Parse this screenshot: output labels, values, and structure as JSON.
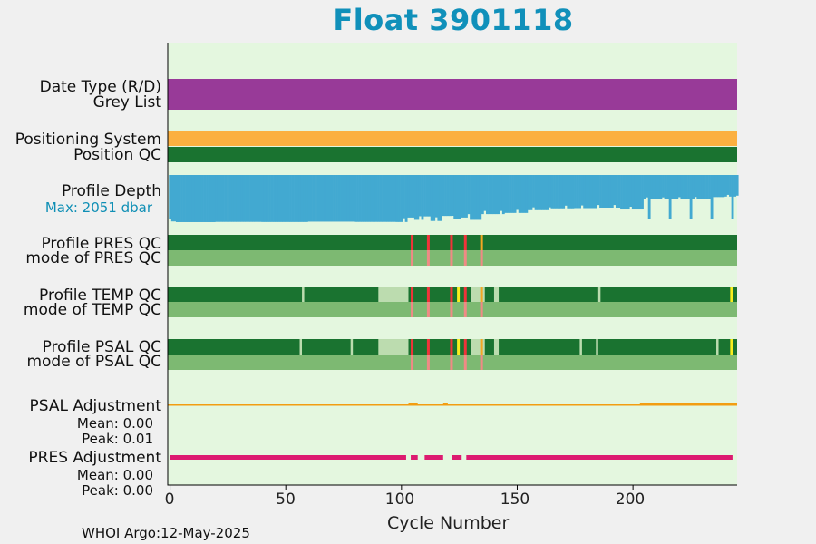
{
  "title": "Float 3901118",
  "footer": "WHOI Argo:12-May-2025",
  "colors": {
    "title": "#1090ba",
    "background": "#e4f7df",
    "purple": "#983a98",
    "orange": "#fbb040",
    "dark_green": "#1a7330",
    "light_green": "#7db972",
    "pale_green": "#bcdcaf",
    "red": "#f0333a",
    "salmon": "#f08a85",
    "yellow": "#f9ee1e",
    "orange_qc": "#f5a623",
    "blue": "#42a9d1",
    "magenta": "#dc1b70",
    "salinity_adj": "#f29d12"
  },
  "labels": {
    "date_type": "Date Type (R/D)",
    "grey_list": "Grey List",
    "positioning_system": "Positioning System",
    "position_qc": "Position QC",
    "profile_depth": "Profile Depth",
    "max_depth": "Max: 2051 dbar",
    "pres_qc": "Profile PRES QC",
    "pres_mode": "mode of PRES QC",
    "temp_qc": "Profile TEMP QC",
    "temp_mode": "mode of TEMP QC",
    "psal_qc": "Profile PSAL QC",
    "psal_mode": "mode of PSAL QC",
    "psal_adj": "PSAL Adjustment",
    "psal_mean": "Mean: 0.00",
    "psal_peak": "Peak: 0.01",
    "pres_adj": "PRES Adjustment",
    "pres_mean": "Mean: 0.00",
    "pres_peak": "Peak: 0.00"
  },
  "chart_data": {
    "type": "qc-timeline",
    "title": "Float 3901118",
    "xlabel": "Cycle Number",
    "xlim": [
      -1,
      245
    ],
    "xticks": [
      0,
      50,
      100,
      150,
      200
    ],
    "max_depth_dbar": 2051,
    "depth_profile": [
      [
        0,
        1900
      ],
      [
        1,
        2020
      ],
      [
        3,
        2050
      ],
      [
        20,
        2040
      ],
      [
        40,
        2045
      ],
      [
        60,
        2030
      ],
      [
        80,
        2040
      ],
      [
        98,
        2045
      ],
      [
        103,
        1850
      ],
      [
        106,
        1950
      ],
      [
        110,
        1800
      ],
      [
        113,
        2000
      ],
      [
        118,
        1780
      ],
      [
        122,
        1930
      ],
      [
        126,
        1850
      ],
      [
        130,
        1950
      ],
      [
        135,
        1700
      ],
      [
        145,
        1650
      ],
      [
        155,
        1530
      ],
      [
        165,
        1450
      ],
      [
        175,
        1440
      ],
      [
        185,
        1420
      ],
      [
        195,
        1500
      ],
      [
        205,
        1060
      ],
      [
        215,
        1050
      ],
      [
        225,
        1040
      ],
      [
        235,
        960
      ],
      [
        240,
        940
      ],
      [
        245,
        900
      ]
    ],
    "pres_qc_flags": [
      {
        "cycle": 104,
        "flag": "red"
      },
      {
        "cycle": 111,
        "flag": "red"
      },
      {
        "cycle": 121,
        "flag": "red"
      },
      {
        "cycle": 127,
        "flag": "red"
      },
      {
        "cycle": 134,
        "flag": "orange"
      }
    ],
    "temp_qc_pale": [
      [
        90,
        103
      ],
      [
        130,
        136
      ],
      [
        140,
        142
      ]
    ],
    "temp_qc_flags": [
      {
        "cycle": 104,
        "flag": "red"
      },
      {
        "cycle": 111,
        "flag": "red"
      },
      {
        "cycle": 121,
        "flag": "red"
      },
      {
        "cycle": 127,
        "flag": "red"
      },
      {
        "cycle": 124,
        "flag": "yellow"
      },
      {
        "cycle": 134,
        "flag": "orange"
      },
      {
        "cycle": 242,
        "flag": "yellow"
      }
    ],
    "psal_qc_pale": [
      [
        90,
        103
      ],
      [
        130,
        136
      ],
      [
        140,
        142
      ]
    ],
    "psal_qc_flags": [
      {
        "cycle": 104,
        "flag": "red"
      },
      {
        "cycle": 111,
        "flag": "red"
      },
      {
        "cycle": 121,
        "flag": "red"
      },
      {
        "cycle": 127,
        "flag": "red"
      },
      {
        "cycle": 124,
        "flag": "yellow"
      },
      {
        "cycle": 134,
        "flag": "orange"
      },
      {
        "cycle": 242,
        "flag": "yellow"
      }
    ],
    "psal_adjustment": {
      "mean": 0.0,
      "peak": 0.01
    },
    "pres_adjustment": {
      "mean": 0.0,
      "peak": 0.0,
      "gaps": [
        [
          102,
          104
        ],
        [
          107,
          110
        ],
        [
          118,
          122
        ],
        [
          126,
          128
        ]
      ]
    }
  }
}
